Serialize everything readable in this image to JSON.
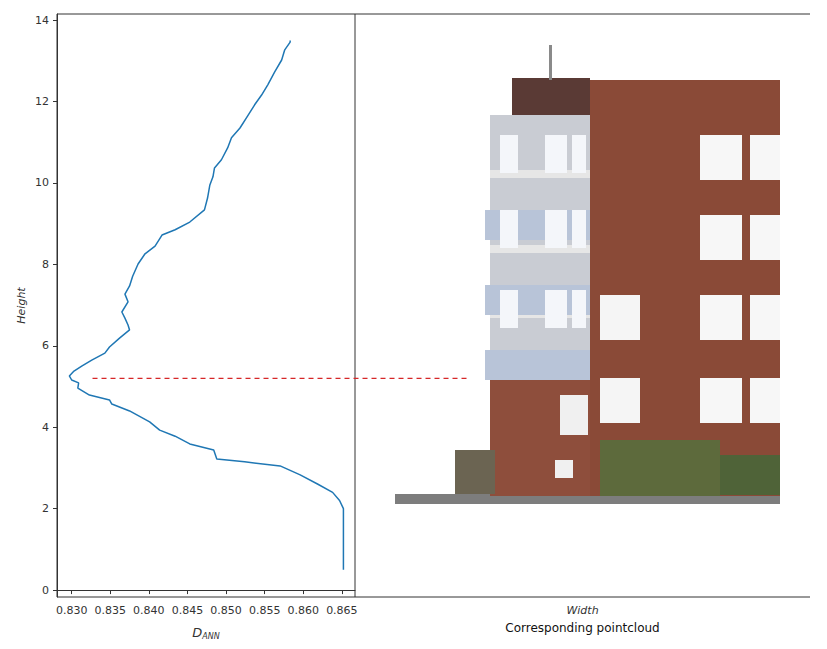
{
  "chart_data": {
    "type": "line",
    "x_label": "D",
    "x_label_subscript": "ANN",
    "y_label": "Height",
    "panel_x_label": "Width",
    "panel_caption": "Corresponding pointcloud",
    "color": "#1f77b4",
    "grid": false,
    "x": [
      0.8652,
      0.8652,
      0.8647,
      0.8638,
      0.8619,
      0.8596,
      0.857,
      0.8524,
      0.8488,
      0.8484,
      0.8453,
      0.8434,
      0.8414,
      0.8401,
      0.8375,
      0.8352,
      0.8349,
      0.8323,
      0.8308,
      0.8309,
      0.83,
      0.8297,
      0.8303,
      0.8313,
      0.8326,
      0.8343,
      0.8349,
      0.8362,
      0.8375,
      0.8373,
      0.8369,
      0.8365,
      0.8373,
      0.8369,
      0.8375,
      0.8379,
      0.8386,
      0.8395,
      0.8408,
      0.8417,
      0.8434,
      0.8453,
      0.8472,
      0.8476,
      0.8479,
      0.8483,
      0.8485,
      0.8494,
      0.8502,
      0.8507,
      0.8518,
      0.8528,
      0.8537,
      0.8546,
      0.8554,
      0.8563,
      0.8572,
      0.8576,
      0.8583,
      0.8583
    ],
    "values": [
      0.5,
      2.0,
      2.2,
      2.4,
      2.6,
      2.83,
      3.05,
      3.15,
      3.22,
      3.44,
      3.59,
      3.78,
      3.93,
      4.13,
      4.4,
      4.57,
      4.67,
      4.79,
      4.96,
      5.09,
      5.16,
      5.26,
      5.38,
      5.5,
      5.65,
      5.82,
      5.97,
      6.19,
      6.39,
      6.51,
      6.68,
      6.83,
      7.08,
      7.27,
      7.47,
      7.71,
      8.01,
      8.26,
      8.45,
      8.72,
      8.85,
      9.04,
      9.34,
      9.63,
      9.95,
      10.15,
      10.37,
      10.57,
      10.86,
      11.11,
      11.35,
      11.65,
      11.92,
      12.16,
      12.41,
      12.73,
      13.02,
      13.27,
      13.46,
      13.5
    ],
    "xlim": [
      0.8281,
      0.8667
    ],
    "ylim": [
      -0.17,
      14.15
    ],
    "xticks": [
      {
        "value": 0.83,
        "label": "0.830"
      },
      {
        "value": 0.835,
        "label": "0.835"
      },
      {
        "value": 0.84,
        "label": "0.840"
      },
      {
        "value": 0.845,
        "label": "0.845"
      },
      {
        "value": 0.85,
        "label": "0.850"
      },
      {
        "value": 0.855,
        "label": "0.855"
      },
      {
        "value": 0.86,
        "label": "0.860"
      },
      {
        "value": 0.865,
        "label": "0.865"
      }
    ],
    "yticks": [
      0,
      2,
      4,
      6,
      8,
      10,
      12,
      14
    ],
    "reference_line": {
      "y": 5.2,
      "x_start": 0.8327,
      "color": "#d62728",
      "line_style": "dashed"
    }
  }
}
